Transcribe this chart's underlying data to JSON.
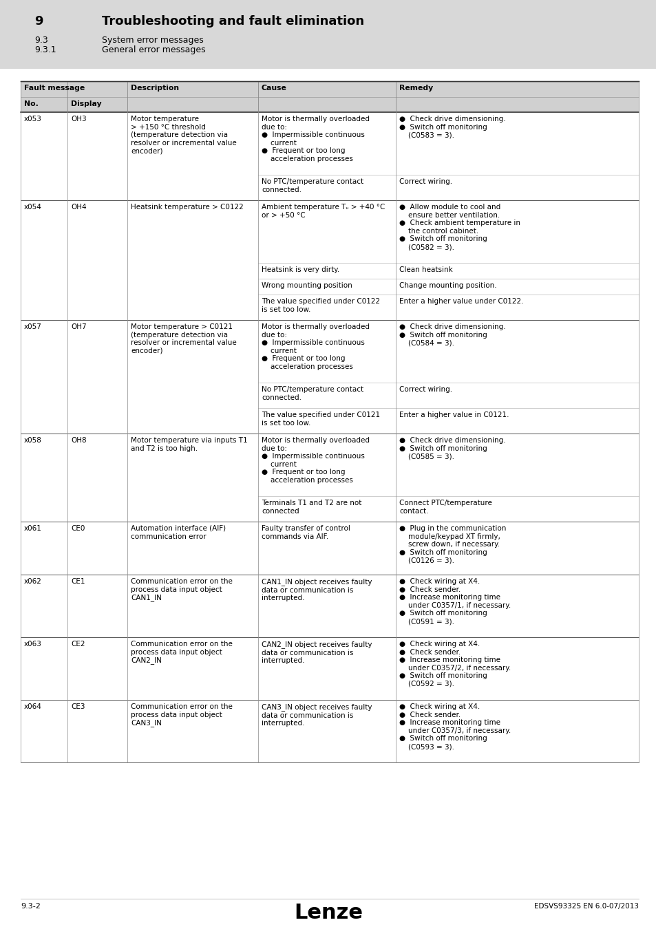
{
  "white": "#ffffff",
  "black": "#000000",
  "header_bg": "#d0d0d0",
  "light_gray": "#d8d8d8",
  "mid_gray": "#aaaaaa",
  "title_section": {
    "num": "9",
    "title": "Troubleshooting and fault elimination",
    "sub1_num": "9.3",
    "sub1": "System error messages",
    "sub2_num": "9.3.1",
    "sub2": "General error messages"
  },
  "footer": {
    "left": "9.3-2",
    "center": "Lenze",
    "right": "EDSVS9332S EN 6.0-07/2013"
  },
  "rows": [
    {
      "no": "x053",
      "display": "OH3",
      "description": "Motor temperature\n> +150 °C threshold\n(temperature detection via\nresolver or incremental value\nencoder)",
      "sub_rows": [
        {
          "cause": "Motor is thermally overloaded\ndue to:\n●  Impermissible continuous\n    current\n●  Frequent or too long\n    acceleration processes",
          "remedy": "●  Check drive dimensioning.\n●  Switch off monitoring\n    (C0583 = 3)."
        },
        {
          "cause": "No PTC/temperature contact\nconnected.",
          "remedy": "Correct wiring."
        }
      ]
    },
    {
      "no": "x054",
      "display": "OH4",
      "description": "Heatsink temperature > C0122",
      "sub_rows": [
        {
          "cause": "Ambient temperature Tᵤ > +40 °C\nor > +50 °C",
          "remedy": "●  Allow module to cool and\n    ensure better ventilation.\n●  Check ambient temperature in\n    the control cabinet.\n●  Switch off monitoring\n    (C0582 = 3)."
        },
        {
          "cause": "Heatsink is very dirty.",
          "remedy": "Clean heatsink"
        },
        {
          "cause": "Wrong mounting position",
          "remedy": "Change mounting position."
        },
        {
          "cause": "The value specified under C0122\nis set too low.",
          "remedy": "Enter a higher value under C0122."
        }
      ]
    },
    {
      "no": "x057",
      "display": "OH7",
      "description": "Motor temperature > C0121\n(temperature detection via\nresolver or incremental value\nencoder)",
      "sub_rows": [
        {
          "cause": "Motor is thermally overloaded\ndue to:\n●  Impermissible continuous\n    current\n●  Frequent or too long\n    acceleration processes",
          "remedy": "●  Check drive dimensioning.\n●  Switch off monitoring\n    (C0584 = 3)."
        },
        {
          "cause": "No PTC/temperature contact\nconnected.",
          "remedy": "Correct wiring."
        },
        {
          "cause": "The value specified under C0121\nis set too low.",
          "remedy": "Enter a higher value in C0121."
        }
      ]
    },
    {
      "no": "x058",
      "display": "OH8",
      "description": "Motor temperature via inputs T1\nand T2 is too high.",
      "sub_rows": [
        {
          "cause": "Motor is thermally overloaded\ndue to:\n●  Impermissible continuous\n    current\n●  Frequent or too long\n    acceleration processes",
          "remedy": "●  Check drive dimensioning.\n●  Switch off monitoring\n    (C0585 = 3)."
        },
        {
          "cause": "Terminals T1 and T2 are not\nconnected",
          "remedy": "Connect PTC/temperature\ncontact."
        }
      ]
    },
    {
      "no": "x061",
      "display": "CE0",
      "description": "Automation interface (AIF)\ncommunication error",
      "sub_rows": [
        {
          "cause": "Faulty transfer of control\ncommands via AIF.",
          "remedy": "●  Plug in the communication\n    module/keypad XT firmly,\n    screw down, if necessary.\n●  Switch off monitoring\n    (C0126 = 3)."
        }
      ]
    },
    {
      "no": "x062",
      "display": "CE1",
      "description": "Communication error on the\nprocess data input object\nCAN1_IN",
      "sub_rows": [
        {
          "cause": "CAN1_IN object receives faulty\ndata or communication is\ninterrupted.",
          "remedy": "●  Check wiring at X4.\n●  Check sender.\n●  Increase monitoring time\n    under C0357/1, if necessary.\n●  Switch off monitoring\n    (C0591 = 3)."
        }
      ]
    },
    {
      "no": "x063",
      "display": "CE2",
      "description": "Communication error on the\nprocess data input object\nCAN2_IN",
      "sub_rows": [
        {
          "cause": "CAN2_IN object receives faulty\ndata or communication is\ninterrupted.",
          "remedy": "●  Check wiring at X4.\n●  Check sender.\n●  Increase monitoring time\n    under C0357/2, if necessary.\n●  Switch off monitoring\n    (C0592 = 3)."
        }
      ]
    },
    {
      "no": "x064",
      "display": "CE3",
      "description": "Communication error on the\nprocess data input object\nCAN3_IN",
      "sub_rows": [
        {
          "cause": "CAN3_IN object receives faulty\ndata or communication is\ninterrupted.",
          "remedy": "●  Check wiring at X4.\n●  Check sender.\n●  Increase monitoring time\n    under C0357/3, if necessary.\n●  Switch off monitoring\n    (C0593 = 3)."
        }
      ]
    }
  ]
}
